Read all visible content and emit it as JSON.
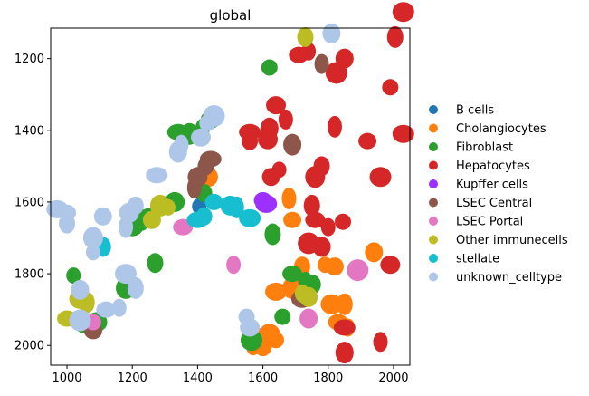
{
  "chart_data": {
    "type": "scatter",
    "title": "global",
    "xlabel": "",
    "ylabel": "",
    "xlim": [
      950,
      2050
    ],
    "ylim": [
      2055,
      1115
    ],
    "y_inverted": true,
    "x_ticks": [
      1000,
      1200,
      1400,
      1600,
      1800,
      2000
    ],
    "y_ticks": [
      1200,
      1400,
      1600,
      1800,
      2000
    ],
    "grid": false,
    "legend_position": "right",
    "series": [
      {
        "name": "B cells",
        "color": "#1f77b4",
        "points": [
          [
            1405,
            1612
          ]
        ]
      },
      {
        "name": "Cholangiocytes",
        "color": "#ff7f0e",
        "points": [
          [
            1432,
            1530
          ],
          [
            1680,
            1590
          ],
          [
            1690,
            1650
          ],
          [
            1640,
            1850
          ],
          [
            1720,
            1780
          ],
          [
            1690,
            1840
          ],
          [
            1790,
            1775
          ],
          [
            1820,
            1780
          ],
          [
            1810,
            1885
          ],
          [
            1850,
            1885
          ],
          [
            1830,
            1935
          ],
          [
            1860,
            1950
          ],
          [
            1940,
            1740
          ],
          [
            1620,
            1970
          ],
          [
            1640,
            1985
          ],
          [
            1580,
            1975
          ],
          [
            1570,
            2000
          ],
          [
            1600,
            2000
          ]
        ]
      },
      {
        "name": "Fibroblast",
        "color": "#2ca02c",
        "points": [
          [
            1620,
            1225
          ],
          [
            1440,
            1370
          ],
          [
            1415,
            1395
          ],
          [
            1375,
            1410
          ],
          [
            1340,
            1405
          ],
          [
            1420,
            1575
          ],
          [
            1330,
            1600
          ],
          [
            1230,
            1650
          ],
          [
            1250,
            1640
          ],
          [
            1200,
            1670
          ],
          [
            1270,
            1770
          ],
          [
            1180,
            1840
          ],
          [
            1020,
            1805
          ],
          [
            1050,
            1940
          ],
          [
            1090,
            1935
          ],
          [
            1630,
            1690
          ],
          [
            1690,
            1800
          ],
          [
            1730,
            1820
          ],
          [
            1750,
            1830
          ],
          [
            1565,
            1985
          ],
          [
            1660,
            1920
          ]
        ]
      },
      {
        "name": "Hepatocytes",
        "color": "#d62728",
        "points": [
          [
            2030,
            1070
          ],
          [
            2005,
            1140
          ],
          [
            1710,
            1190
          ],
          [
            1740,
            1180
          ],
          [
            1850,
            1200
          ],
          [
            1825,
            1240
          ],
          [
            1990,
            1280
          ],
          [
            1640,
            1330
          ],
          [
            1670,
            1370
          ],
          [
            1620,
            1395
          ],
          [
            1560,
            1405
          ],
          [
            1560,
            1430
          ],
          [
            1615,
            1425
          ],
          [
            1820,
            1390
          ],
          [
            1920,
            1430
          ],
          [
            2030,
            1410
          ],
          [
            1780,
            1500
          ],
          [
            1760,
            1530
          ],
          [
            1650,
            1510
          ],
          [
            1625,
            1530
          ],
          [
            1960,
            1530
          ],
          [
            1750,
            1610
          ],
          [
            1760,
            1650
          ],
          [
            1800,
            1670
          ],
          [
            1780,
            1725
          ],
          [
            1740,
            1715
          ],
          [
            1845,
            1655
          ],
          [
            1990,
            1775
          ],
          [
            1960,
            1990
          ],
          [
            1850,
            2020
          ],
          [
            1850,
            1950
          ]
        ]
      },
      {
        "name": "Kupffer cells",
        "color": "#9b30ff",
        "points": [
          [
            1600,
            1595
          ],
          [
            1610,
            1605
          ]
        ]
      },
      {
        "name": "LSEC Central",
        "color": "#8c564b",
        "points": [
          [
            1780,
            1215
          ],
          [
            1690,
            1440
          ],
          [
            1440,
            1480
          ],
          [
            1425,
            1500
          ],
          [
            1400,
            1530
          ],
          [
            1390,
            1560
          ],
          [
            1080,
            1960
          ],
          [
            1720,
            1870
          ]
        ]
      },
      {
        "name": "LSEC Portal",
        "color": "#e377c2",
        "points": [
          [
            1355,
            1670
          ],
          [
            1510,
            1775
          ],
          [
            1740,
            1925
          ],
          [
            1890,
            1790
          ],
          [
            1080,
            1935
          ]
        ]
      },
      {
        "name": "Other immunecells",
        "color": "#bcbd22",
        "points": [
          [
            1730,
            1140
          ],
          [
            1285,
            1610
          ],
          [
            1310,
            1615
          ],
          [
            1260,
            1650
          ],
          [
            1040,
            1870
          ],
          [
            1060,
            1880
          ],
          [
            1000,
            1925
          ],
          [
            1720,
            1855
          ],
          [
            1740,
            1865
          ]
        ]
      },
      {
        "name": "stellate",
        "color": "#17becf",
        "points": [
          [
            1400,
            1650
          ],
          [
            1420,
            1640
          ],
          [
            1500,
            1610
          ],
          [
            1520,
            1615
          ],
          [
            1450,
            1600
          ],
          [
            1560,
            1645
          ],
          [
            1110,
            1725
          ]
        ]
      },
      {
        "name": "unknown_celltype",
        "color": "#aec7e8",
        "points": [
          [
            1810,
            1130
          ],
          [
            1450,
            1360
          ],
          [
            1430,
            1380
          ],
          [
            1410,
            1420
          ],
          [
            1350,
            1440
          ],
          [
            1340,
            1460
          ],
          [
            1275,
            1525
          ],
          [
            1210,
            1610
          ],
          [
            1190,
            1630
          ],
          [
            1180,
            1670
          ],
          [
            1000,
            1630
          ],
          [
            970,
            1620
          ],
          [
            1000,
            1660
          ],
          [
            1080,
            1700
          ],
          [
            1080,
            1740
          ],
          [
            1110,
            1640
          ],
          [
            1180,
            1800
          ],
          [
            1210,
            1840
          ],
          [
            1120,
            1900
          ],
          [
            1160,
            1895
          ],
          [
            1040,
            1845
          ],
          [
            1040,
            1930
          ],
          [
            1550,
            1920
          ],
          [
            1560,
            1950
          ]
        ]
      }
    ]
  }
}
